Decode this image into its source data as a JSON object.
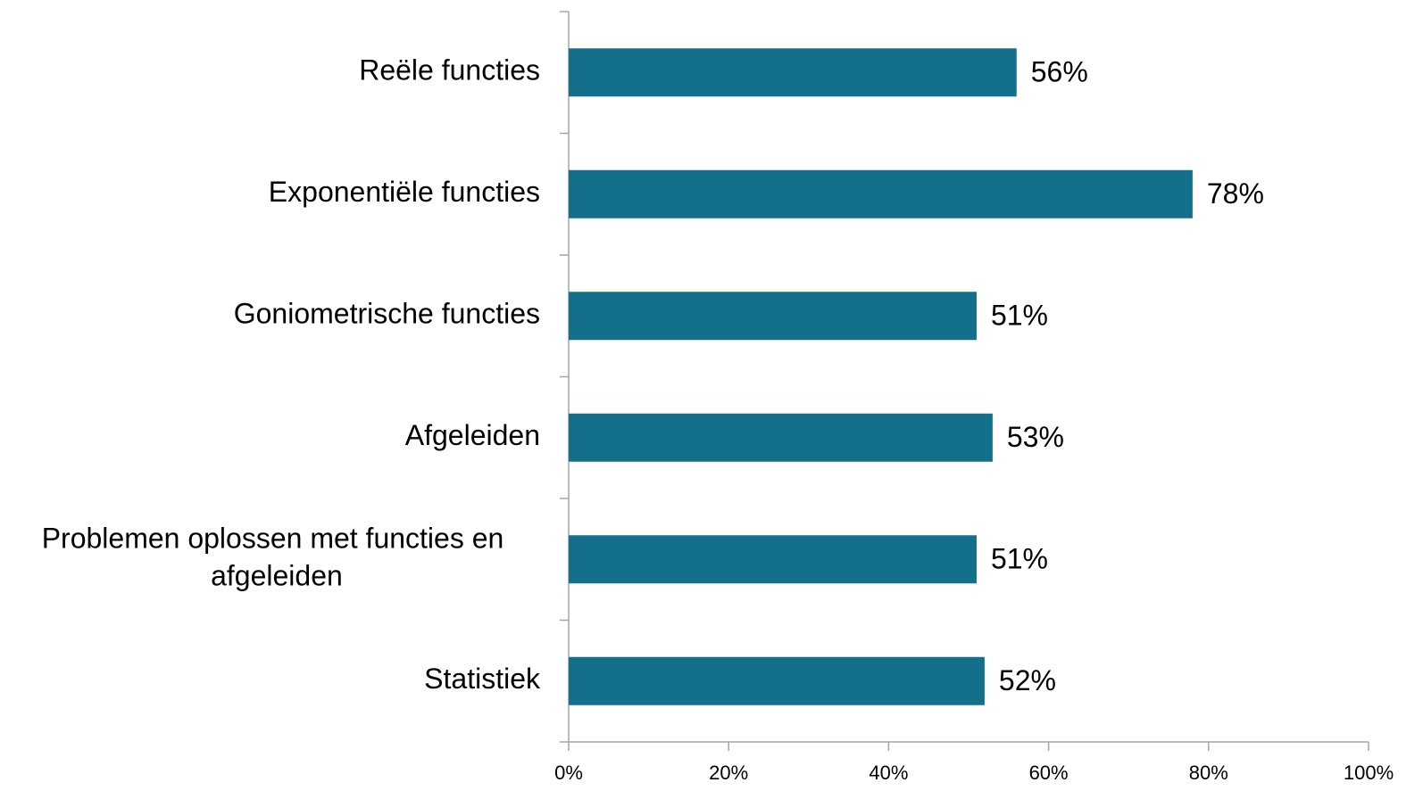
{
  "chart_data": {
    "type": "bar",
    "orientation": "horizontal",
    "categories": [
      "Reële functies",
      "Exponentiële functies",
      "Goniometrische functies",
      "Afgeleiden",
      "Problemen oplossen met functies en afgeleiden",
      "Statistiek"
    ],
    "values": [
      56,
      78,
      51,
      53,
      51,
      52
    ],
    "value_labels": [
      "56%",
      "78%",
      "51%",
      "53%",
      "51%",
      "52%"
    ],
    "color": "#136f8a",
    "xlim": [
      0,
      100
    ],
    "xticks": [
      {
        "value": 0,
        "label": "0%"
      },
      {
        "value": 20,
        "label": "20%"
      },
      {
        "value": 40,
        "label": "40%"
      },
      {
        "value": 60,
        "label": "60%"
      },
      {
        "value": 80,
        "label": "80%"
      },
      {
        "value": 100,
        "label": "100%"
      }
    ],
    "grid": false
  }
}
